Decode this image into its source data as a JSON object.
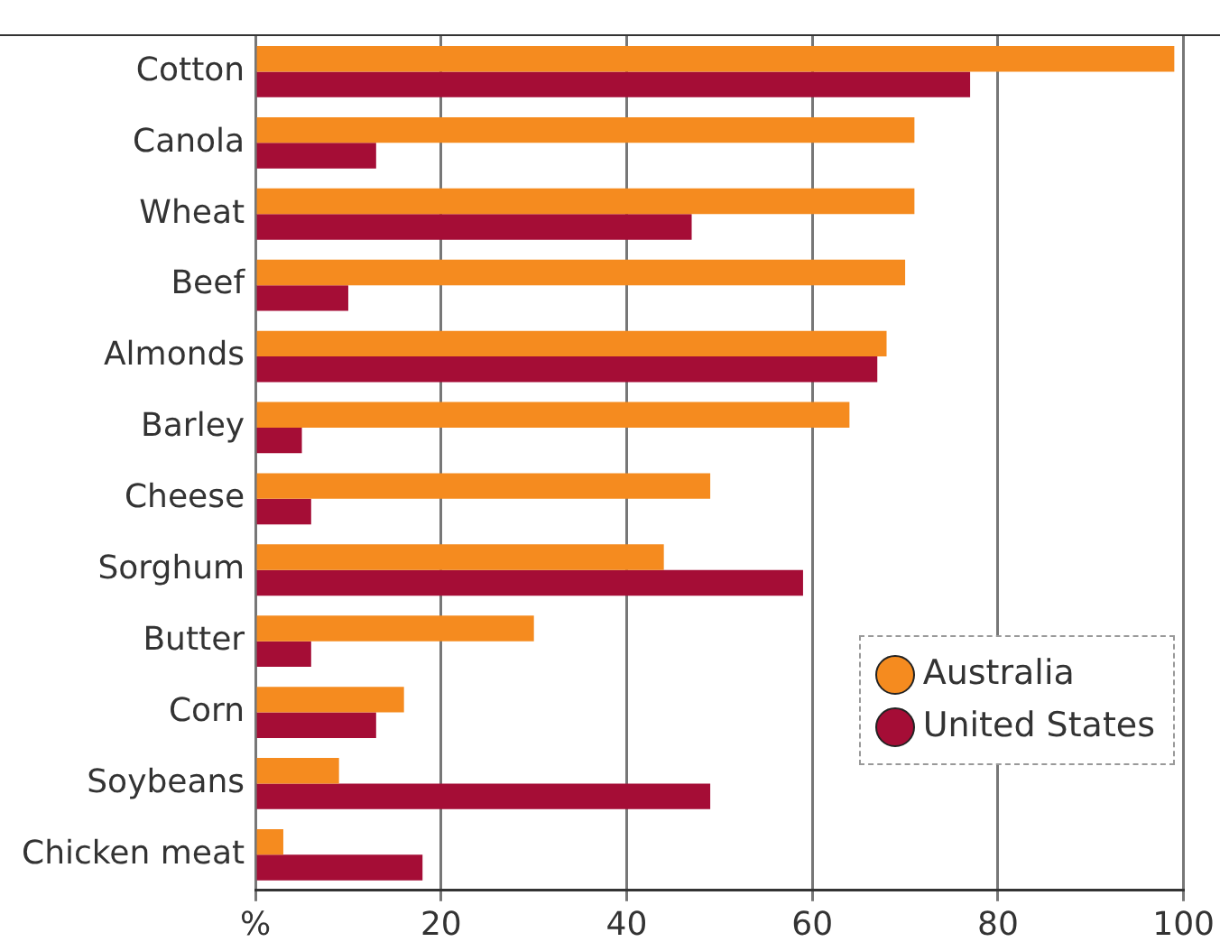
{
  "chart_data": {
    "type": "bar",
    "orientation": "horizontal",
    "categories": [
      "Cotton",
      "Canola",
      "Wheat",
      "Beef",
      "Almonds",
      "Barley",
      "Cheese",
      "Sorghum",
      "Butter",
      "Corn",
      "Soybeans",
      "Chicken meat"
    ],
    "series": [
      {
        "name": "Australia",
        "color": "#f58b1f",
        "values": [
          99,
          71,
          71,
          70,
          68,
          64,
          49,
          44,
          30,
          16,
          9,
          3
        ]
      },
      {
        "name": "United States",
        "color": "#a50d36",
        "values": [
          77,
          13,
          47,
          10,
          67,
          5,
          6,
          59,
          6,
          13,
          49,
          18
        ]
      }
    ],
    "xlim": [
      0,
      100
    ],
    "xticks": [
      {
        "value": 0,
        "label": "%"
      },
      20,
      40,
      60,
      80,
      100
    ],
    "grid": "x",
    "legend": "bottom right"
  }
}
